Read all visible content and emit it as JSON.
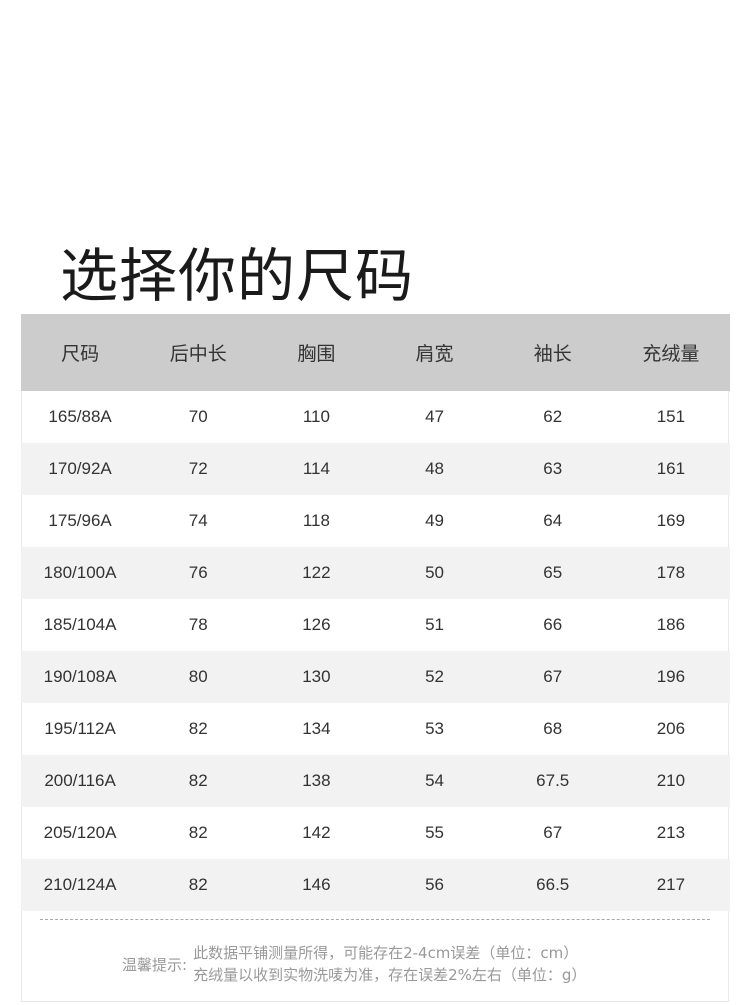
{
  "title": "选择你的尺码",
  "table": {
    "headers": [
      "尺码",
      "后中长",
      "胸围",
      "肩宽",
      "袖长",
      "充绒量"
    ],
    "rows": [
      [
        "165/88A",
        "70",
        "110",
        "47",
        "62",
        "151"
      ],
      [
        "170/92A",
        "72",
        "114",
        "48",
        "63",
        "161"
      ],
      [
        "175/96A",
        "74",
        "118",
        "49",
        "64",
        "169"
      ],
      [
        "180/100A",
        "76",
        "122",
        "50",
        "65",
        "178"
      ],
      [
        "185/104A",
        "78",
        "126",
        "51",
        "66",
        "186"
      ],
      [
        "190/108A",
        "80",
        "130",
        "52",
        "67",
        "196"
      ],
      [
        "195/112A",
        "82",
        "134",
        "53",
        "68",
        "206"
      ],
      [
        "200/116A",
        "82",
        "138",
        "54",
        "67.5",
        "210"
      ],
      [
        "205/120A",
        "82",
        "142",
        "55",
        "67",
        "213"
      ],
      [
        "210/124A",
        "82",
        "146",
        "56",
        "66.5",
        "217"
      ]
    ]
  },
  "note": {
    "label": "温馨提示:",
    "lines": [
      "此数据平铺测量所得，可能存在2-4cm误差（单位：cm）",
      "充绒量以收到实物洗唛为准，存在误差2%左右（单位：g）"
    ]
  }
}
